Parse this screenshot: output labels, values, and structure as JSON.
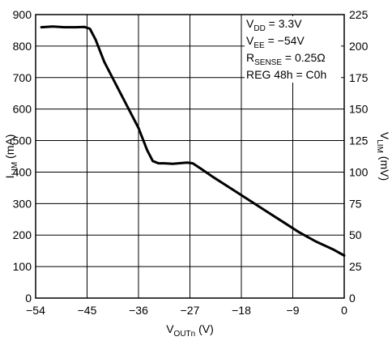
{
  "chart_data": {
    "type": "line",
    "xlabel": {
      "main": "V",
      "sub": "OUTn",
      "unit": " (V)"
    },
    "ylabel_left": {
      "main": "I",
      "sub": "LIM",
      "unit": " (mA)"
    },
    "ylabel_right": {
      "main": "V",
      "sub": "LIM",
      "unit": " (mV)"
    },
    "xlim": [
      -54,
      0
    ],
    "ylim_left": [
      0,
      900
    ],
    "ylim_right": [
      0,
      225
    ],
    "x_ticks": [
      -54,
      -45,
      -36,
      -27,
      -18,
      -9,
      0
    ],
    "x_tick_labels": [
      "−54",
      "−45",
      "−36",
      "−27",
      "−18",
      "−9",
      "0"
    ],
    "y_left_ticks": [
      0,
      100,
      200,
      300,
      400,
      500,
      600,
      700,
      800,
      900
    ],
    "y_left_tick_labels": [
      "0",
      "100",
      "200",
      "300",
      "400",
      "500",
      "600",
      "700",
      "800",
      "900"
    ],
    "y_right_ticks": [
      0,
      25,
      50,
      75,
      100,
      125,
      150,
      175,
      200,
      225
    ],
    "y_right_tick_labels": [
      "0",
      "25",
      "50",
      "75",
      "100",
      "125",
      "150",
      "175",
      "200",
      "225"
    ],
    "grid": true,
    "annotations": [
      {
        "main": "V",
        "sub": "DD",
        "rest": " = 3.3V"
      },
      {
        "main": "V",
        "sub": "EE",
        "rest": " = −54V"
      },
      {
        "main": "R",
        "sub": "SENSE",
        "rest": " = 0.25Ω"
      },
      {
        "main": "REG 48h = C0h",
        "sub": "",
        "rest": ""
      }
    ],
    "series": [
      {
        "x": [
          -53,
          -51,
          -49,
          -47,
          -45.5,
          -44.5,
          -43.5,
          -42,
          -40,
          -38,
          -36,
          -34.5,
          -33.5,
          -32.5,
          -31.5,
          -30,
          -29,
          -27.5,
          -26.5,
          -25,
          -23,
          -20,
          -17,
          -14,
          -11,
          -8,
          -5,
          -2,
          0
        ],
        "y": [
          860,
          862,
          860,
          860,
          861,
          855,
          820,
          750,
          680,
          610,
          540,
          470,
          435,
          428,
          428,
          426,
          428,
          430,
          428,
          410,
          385,
          350,
          315,
          280,
          245,
          210,
          180,
          155,
          135
        ]
      }
    ]
  }
}
